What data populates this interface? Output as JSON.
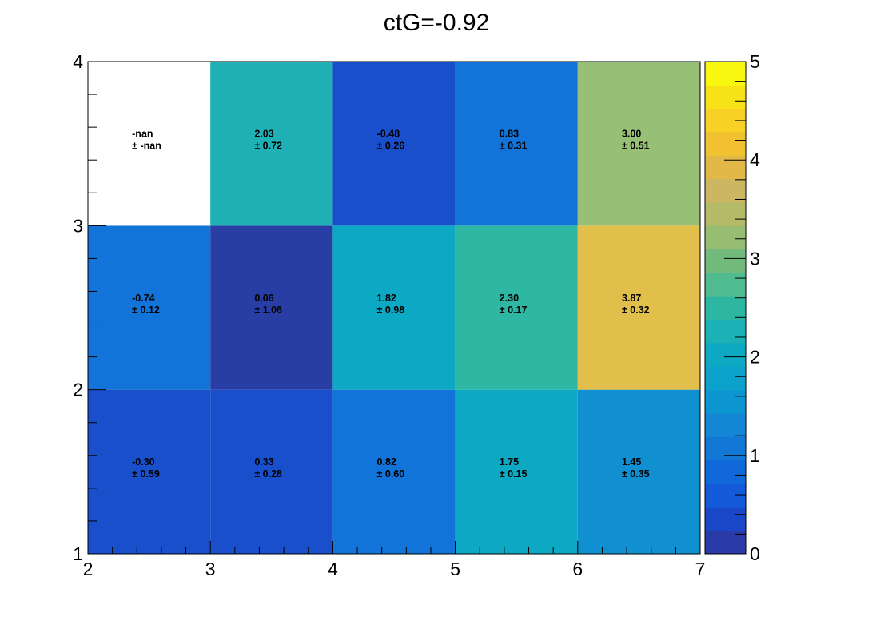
{
  "chart_data": {
    "type": "heatmap",
    "title": "ctG=-0.92",
    "xlabel": "",
    "ylabel": "",
    "x_edges": [
      2,
      3,
      4,
      5,
      6,
      7
    ],
    "y_edges": [
      1,
      2,
      3,
      4
    ],
    "xlim": [
      2,
      7
    ],
    "ylim": [
      1,
      4
    ],
    "x_ticks": [
      "2",
      "3",
      "4",
      "5",
      "6",
      "7"
    ],
    "y_ticks": [
      "1",
      "2",
      "3",
      "4"
    ],
    "zlim": [
      0,
      5
    ],
    "z_ticks": [
      "0",
      "1",
      "2",
      "3",
      "4",
      "5"
    ],
    "grid": false,
    "colorbar_position": "right",
    "rows": [
      {
        "y_range": [
          1,
          2
        ],
        "cells": [
          {
            "value": -0.3,
            "text": "-0.30",
            "error": "± 0.59"
          },
          {
            "value": 0.33,
            "text": "0.33",
            "error": "± 0.28"
          },
          {
            "value": 0.82,
            "text": "0.82",
            "error": "± 0.60"
          },
          {
            "value": 1.75,
            "text": "1.75",
            "error": "± 0.15"
          },
          {
            "value": 1.45,
            "text": "1.45",
            "error": "± 0.35"
          }
        ]
      },
      {
        "y_range": [
          2,
          3
        ],
        "cells": [
          {
            "value": -0.74,
            "text": "-0.74",
            "error": "± 0.12"
          },
          {
            "value": 0.06,
            "text": "0.06",
            "error": "± 1.06"
          },
          {
            "value": 1.82,
            "text": "1.82",
            "error": "± 0.98"
          },
          {
            "value": 2.3,
            "text": "2.30",
            "error": "± 0.17"
          },
          {
            "value": 3.87,
            "text": "3.87",
            "error": "± 0.32"
          }
        ]
      },
      {
        "y_range": [
          3,
          4
        ],
        "cells": [
          {
            "value": null,
            "text": "-nan",
            "error": "± -nan"
          },
          {
            "value": 2.03,
            "text": "2.03",
            "error": "± 0.72"
          },
          {
            "value": -0.48,
            "text": "-0.48",
            "error": "± 0.26"
          },
          {
            "value": 0.83,
            "text": "0.83",
            "error": "± 0.31"
          },
          {
            "value": 3.0,
            "text": "3.00",
            "error": "± 0.51"
          }
        ]
      }
    ],
    "palette": [
      "#2a3aa6",
      "#1a47c8",
      "#125ad9",
      "#1169d9",
      "#1377d6",
      "#1387d4",
      "#0c96d0",
      "#0ba1cb",
      "#0da9c3",
      "#1cb0b7",
      "#2db7a3",
      "#4fbb8f",
      "#72bb7d",
      "#96bd72",
      "#b3bb68",
      "#cbb661",
      "#e2b848",
      "#f1c131",
      "#f8d026",
      "#f7e218",
      "#f7f70f"
    ],
    "cell_colors": {
      "nan": "#ffffff",
      "-0.30": "#1a4fcc",
      "0.33": "#1a4fcc",
      "0.82": "#1273d8",
      "1.75": "#0da8c4",
      "1.45": "#1190d1",
      "-0.74": "#1273d8",
      "0.06": "#283ea4",
      "1.82": "#0da8c4",
      "2.30": "#2eb8a4",
      "3.87": "#e1bf4a",
      "2.03": "#1fb0b6",
      "-0.48": "#1a4fcc",
      "0.83": "#1273d8",
      "3.00": "#97bf75"
    }
  }
}
